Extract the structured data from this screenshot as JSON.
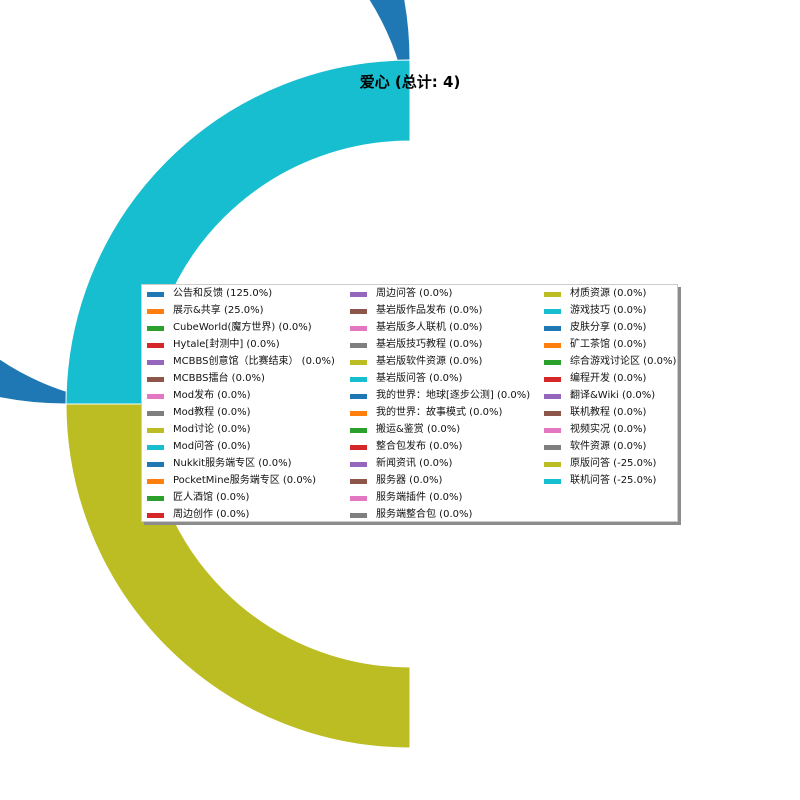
{
  "chart_data": {
    "type": "pie",
    "style": "donut",
    "title": "爱心 (总计: 4)",
    "slices": [
      {
        "label": "公告和反馈",
        "value": 125.0,
        "color": "#1f77b4"
      },
      {
        "label": "展示&共享",
        "value": 25.0,
        "color": "#ff7f0e"
      },
      {
        "label": "CubeWorld(魔方世界)",
        "value": 0.0,
        "color": "#2ca02c"
      },
      {
        "label": "Hytale[封测中]",
        "value": 0.0,
        "color": "#d62728"
      },
      {
        "label": "MCBBS创意馆（比赛结束）",
        "value": 0.0,
        "color": "#9467bd"
      },
      {
        "label": "MCBBS擂台",
        "value": 0.0,
        "color": "#8c564b"
      },
      {
        "label": "Mod发布",
        "value": 0.0,
        "color": "#e377c2"
      },
      {
        "label": "Mod教程",
        "value": 0.0,
        "color": "#7f7f7f"
      },
      {
        "label": "Mod讨论",
        "value": 0.0,
        "color": "#bcbd22"
      },
      {
        "label": "Mod问答",
        "value": 0.0,
        "color": "#17becf"
      },
      {
        "label": "Nukkit服务端专区",
        "value": 0.0,
        "color": "#1f77b4"
      },
      {
        "label": "PocketMine服务端专区",
        "value": 0.0,
        "color": "#ff7f0e"
      },
      {
        "label": "匠人酒馆",
        "value": 0.0,
        "color": "#2ca02c"
      },
      {
        "label": "周边创作",
        "value": 0.0,
        "color": "#d62728"
      },
      {
        "label": "周边问答",
        "value": 0.0,
        "color": "#9467bd"
      },
      {
        "label": "基岩版作品发布",
        "value": 0.0,
        "color": "#8c564b"
      },
      {
        "label": "基岩版多人联机",
        "value": 0.0,
        "color": "#e377c2"
      },
      {
        "label": "基岩版技巧教程",
        "value": 0.0,
        "color": "#7f7f7f"
      },
      {
        "label": "基岩版软件资源",
        "value": 0.0,
        "color": "#bcbd22"
      },
      {
        "label": "基岩版问答",
        "value": 0.0,
        "color": "#17becf"
      },
      {
        "label": "我的世界：地球[逐步公测]",
        "value": 0.0,
        "color": "#1f77b4"
      },
      {
        "label": "我的世界：故事模式",
        "value": 0.0,
        "color": "#ff7f0e"
      },
      {
        "label": "搬运&鉴赏",
        "value": 0.0,
        "color": "#2ca02c"
      },
      {
        "label": "整合包发布",
        "value": 0.0,
        "color": "#d62728"
      },
      {
        "label": "新闻资讯",
        "value": 0.0,
        "color": "#9467bd"
      },
      {
        "label": "服务器",
        "value": 0.0,
        "color": "#8c564b"
      },
      {
        "label": "服务端插件",
        "value": 0.0,
        "color": "#e377c2"
      },
      {
        "label": "服务端整合包",
        "value": 0.0,
        "color": "#7f7f7f"
      },
      {
        "label": "材质资源",
        "value": 0.0,
        "color": "#bcbd22"
      },
      {
        "label": "游戏技巧",
        "value": 0.0,
        "color": "#17becf"
      },
      {
        "label": "皮肤分享",
        "value": 0.0,
        "color": "#1f77b4"
      },
      {
        "label": "矿工茶馆",
        "value": 0.0,
        "color": "#ff7f0e"
      },
      {
        "label": "综合游戏讨论区",
        "value": 0.0,
        "color": "#2ca02c"
      },
      {
        "label": "编程开发",
        "value": 0.0,
        "color": "#d62728"
      },
      {
        "label": "翻译&Wiki",
        "value": 0.0,
        "color": "#9467bd"
      },
      {
        "label": "联机教程",
        "value": 0.0,
        "color": "#8c564b"
      },
      {
        "label": "视频实况",
        "value": 0.0,
        "color": "#e377c2"
      },
      {
        "label": "软件资源",
        "value": 0.0,
        "color": "#7f7f7f"
      },
      {
        "label": "原版问答",
        "value": -25.0,
        "color": "#bcbd22"
      },
      {
        "label": "联机问答",
        "value": -25.0,
        "color": "#17becf"
      }
    ],
    "legend_labels": [
      "公告和反馈 (125.0%)",
      "展示&共享 (25.0%)",
      "CubeWorld(魔方世界) (0.0%)",
      "Hytale[封测中] (0.0%)",
      "MCBBS创意馆（比赛结束） (0.0%)",
      "MCBBS擂台 (0.0%)",
      "Mod发布 (0.0%)",
      "Mod教程 (0.0%)",
      "Mod讨论 (0.0%)",
      "Mod问答 (0.0%)",
      "Nukkit服务端专区 (0.0%)",
      "PocketMine服务端专区 (0.0%)",
      "匠人酒馆 (0.0%)",
      "周边创作 (0.0%)",
      "周边问答 (0.0%)",
      "基岩版作品发布 (0.0%)",
      "基岩版多人联机 (0.0%)",
      "基岩版技巧教程 (0.0%)",
      "基岩版软件资源 (0.0%)",
      "基岩版问答 (0.0%)",
      "我的世界：地球[逐步公测] (0.0%)",
      "我的世界：故事模式 (0.0%)",
      "搬运&鉴赏 (0.0%)",
      "整合包发布 (0.0%)",
      "新闻资讯 (0.0%)",
      "服务器 (0.0%)",
      "服务端插件 (0.0%)",
      "服务端整合包 (0.0%)",
      "材质资源 (0.0%)",
      "游戏技巧 (0.0%)",
      "皮肤分享 (0.0%)",
      "矿工茶馆 (0.0%)",
      "综合游戏讨论区 (0.0%)",
      "编程开发 (0.0%)",
      "翻译&Wiki (0.0%)",
      "联机教程 (0.0%)",
      "视频实况 (0.0%)",
      "软件资源 (0.0%)",
      "原版问答 (-25.0%)",
      "联机问答 (-25.0%)"
    ],
    "legend_placement": "center",
    "legend_columns": 3
  }
}
